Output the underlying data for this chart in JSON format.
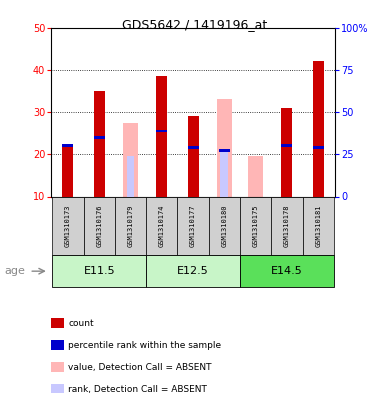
{
  "title": "GDS5642 / 1419196_at",
  "samples": [
    "GSM1310173",
    "GSM1310176",
    "GSM1310179",
    "GSM1310174",
    "GSM1310177",
    "GSM1310180",
    "GSM1310175",
    "GSM1310178",
    "GSM1310181"
  ],
  "age_groups": [
    {
      "label": "E11.5",
      "indices": [
        0,
        1,
        2
      ],
      "color": "#c8f5c8"
    },
    {
      "label": "E12.5",
      "indices": [
        3,
        4,
        5
      ],
      "color": "#c8f5c8"
    },
    {
      "label": "E14.5",
      "indices": [
        6,
        7,
        8
      ],
      "color": "#5ae05a"
    }
  ],
  "count_values": [
    22,
    35,
    null,
    38.5,
    29,
    null,
    null,
    31,
    42
  ],
  "rank_values": [
    22,
    24,
    null,
    25.5,
    21.5,
    21,
    null,
    22,
    21.5
  ],
  "absent_value_bars": [
    null,
    null,
    27.5,
    null,
    null,
    33,
    19.5,
    null,
    null
  ],
  "absent_rank_bars": [
    null,
    null,
    19.5,
    null,
    null,
    20.8,
    null,
    null,
    null
  ],
  "count_color": "#cc0000",
  "rank_color": "#0000cc",
  "absent_value_color": "#ffb6b6",
  "absent_rank_color": "#c8c8ff",
  "ylim": [
    10,
    50
  ],
  "y2lim": [
    0,
    100
  ],
  "yticks": [
    10,
    20,
    30,
    40,
    50
  ],
  "y2ticks": [
    0,
    25,
    50,
    75,
    100
  ],
  "y2ticklabels": [
    "0",
    "25",
    "50",
    "75",
    "100%"
  ],
  "bar_width": 0.35,
  "absent_bar_width": 0.35,
  "background_color": "#ffffff",
  "sample_bg": "#d0d0d0",
  "legend_items": [
    {
      "color": "#cc0000",
      "label": "count"
    },
    {
      "color": "#0000cc",
      "label": "percentile rank within the sample"
    },
    {
      "color": "#ffb6b6",
      "label": "value, Detection Call = ABSENT"
    },
    {
      "color": "#c8c8ff",
      "label": "rank, Detection Call = ABSENT"
    }
  ]
}
